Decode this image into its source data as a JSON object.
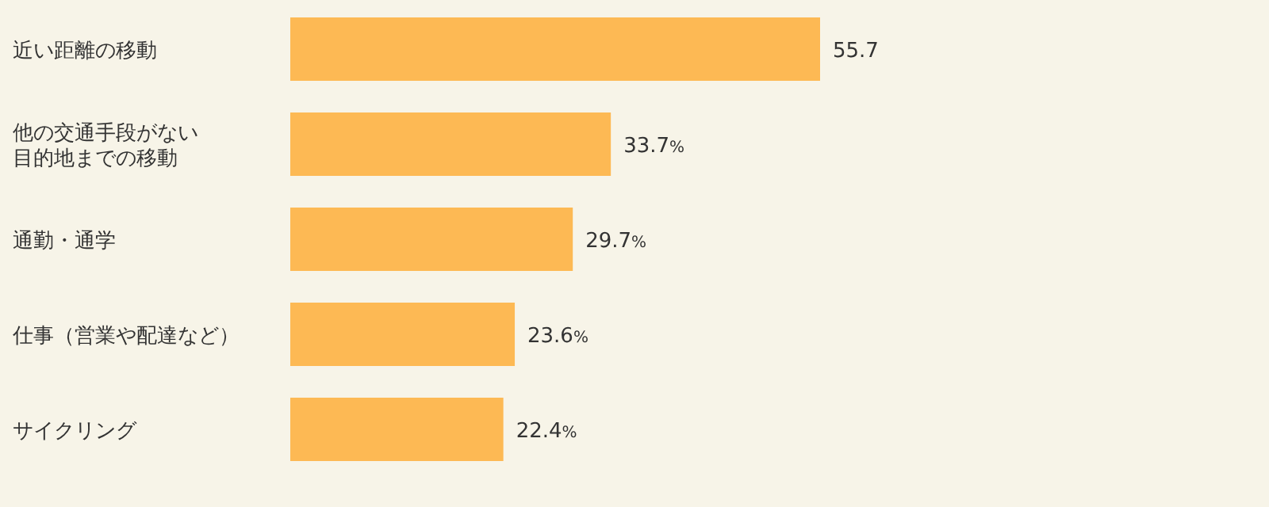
{
  "chart_data": {
    "type": "bar",
    "orientation": "horizontal",
    "color": "#fdb954",
    "categories": [
      "近い距離の移動",
      "他の交通手段がない目的地までの移動",
      "通勤・通学",
      "仕事（営業や配達など）",
      "サイクリング"
    ],
    "values": [
      55.7,
      33.7,
      29.7,
      23.6,
      22.4
    ],
    "value_labels": [
      "55.7",
      "33.7%",
      "29.7%",
      "23.6%",
      "22.4%"
    ]
  }
}
